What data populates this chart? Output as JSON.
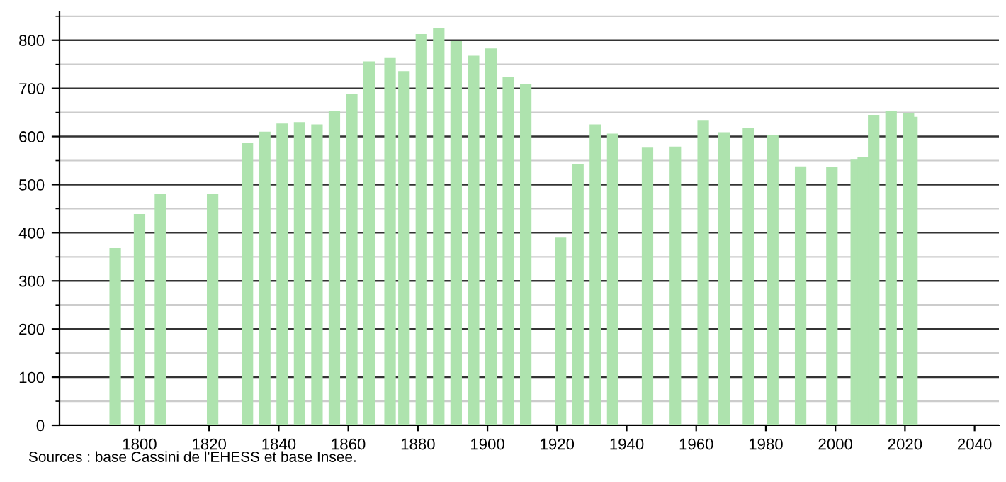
{
  "chart_data": {
    "type": "bar",
    "x": [
      1793,
      1800,
      1806,
      1821,
      1831,
      1836,
      1841,
      1846,
      1851,
      1856,
      1861,
      1866,
      1872,
      1876,
      1881,
      1886,
      1891,
      1896,
      1901,
      1906,
      1911,
      1921,
      1926,
      1931,
      1936,
      1946,
      1954,
      1962,
      1968,
      1975,
      1982,
      1990,
      1999,
      2006,
      2008,
      2011,
      2016,
      2021,
      2022
    ],
    "values": [
      368,
      439,
      480,
      480,
      586,
      610,
      627,
      630,
      625,
      653,
      689,
      756,
      763,
      736,
      813,
      826,
      798,
      768,
      783,
      724,
      709,
      390,
      542,
      625,
      606,
      577,
      579,
      633,
      609,
      618,
      603,
      538,
      536,
      552,
      557,
      645,
      653,
      648,
      641
    ],
    "color": "#aee3ae",
    "xlim": [
      1777,
      2047
    ],
    "xticks": [
      1800,
      1820,
      1840,
      1860,
      1880,
      1900,
      1920,
      1940,
      1960,
      1980,
      2000,
      2020,
      2040
    ],
    "ylim": [
      0,
      860
    ],
    "yticks": [
      0,
      100,
      200,
      300,
      400,
      500,
      600,
      700,
      800
    ],
    "grid": "y",
    "annotations": [
      "Sources : base Cassini de l'EHESS et base Insee."
    ]
  }
}
